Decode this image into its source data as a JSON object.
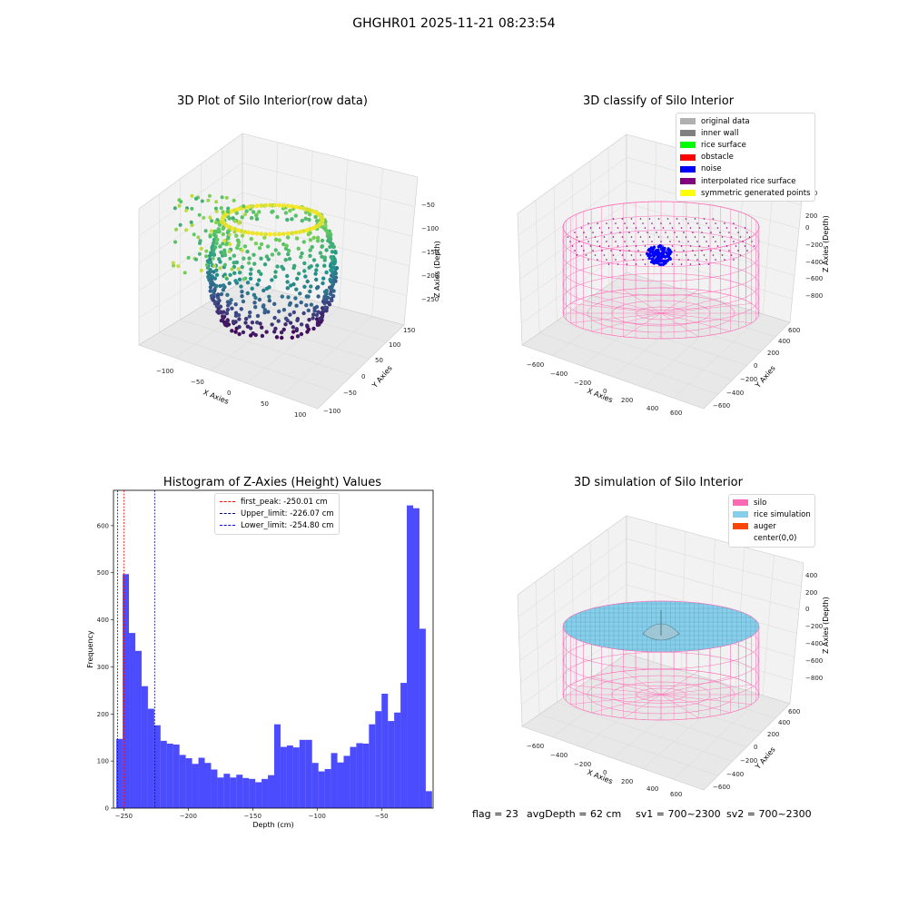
{
  "page_title": "GHGHR01 2025-11-21 08:23:54",
  "footer": {
    "flag": "flag = 23",
    "avg_depth": "avgDepth = 62 cm",
    "sv1": "sv1 = 700~2300",
    "sv2": "sv2 = 700~2300"
  },
  "chart_data": [
    {
      "type": "scatter",
      "title": "3D Plot of Silo Interior(row data)",
      "xlabel": "X Axies",
      "ylabel": "Y Axies",
      "zlabel": "Z Axies (Depth)",
      "x_ticks": [
        "−100",
        "−50",
        "0",
        "50",
        "100"
      ],
      "y_ticks": [
        "−100",
        "−50",
        "0",
        "50",
        "100",
        "150"
      ],
      "z_ticks": [
        "−50",
        "−100",
        "−150",
        "−200",
        "−250"
      ],
      "xlim": [
        -130,
        110
      ],
      "ylim": [
        -110,
        170
      ],
      "zlim": [
        -270,
        -30
      ],
      "colormap": "viridis"
    },
    {
      "type": "scatter",
      "title": "3D classify of Silo Interior",
      "xlabel": "X Axies",
      "ylabel": "Y Axies",
      "zlabel": "Z Axies (Depth)",
      "x_ticks": [
        "−600",
        "−400",
        "−200",
        "0",
        "200",
        "400",
        "600"
      ],
      "y_ticks": [
        "−600",
        "−400",
        "−200",
        "0",
        "200",
        "400",
        "600"
      ],
      "z_ticks": [
        "400",
        "200",
        "0",
        "−200",
        "−400",
        "−600",
        "−800"
      ],
      "legend": [
        {
          "label": "original data",
          "color": "#b0b0b0"
        },
        {
          "label": "inner wall",
          "color": "#808080"
        },
        {
          "label": "rice surface",
          "color": "#00ff00"
        },
        {
          "label": "obstacle",
          "color": "#ff0000"
        },
        {
          "label": "noise",
          "color": "#0000ff"
        },
        {
          "label": "interpolated rice surface",
          "color": "#800080"
        },
        {
          "label": "symmetric generated points",
          "color": "#ffff00"
        }
      ],
      "legend_position": "top-right"
    },
    {
      "type": "bar",
      "title": "Histogram of Z-Axies (Height) Values",
      "xlabel": "Depth (cm)",
      "ylabel": "Frequency",
      "xlim": [
        -258,
        -10
      ],
      "ylim": [
        0,
        675
      ],
      "x_ticks": [
        -250,
        -200,
        -150,
        -100,
        -50
      ],
      "y_ticks": [
        0,
        100,
        200,
        300,
        400,
        500,
        600
      ],
      "bar_color": "#0000ff",
      "bin_start": -255.8,
      "bin_width": 4.9,
      "values": [
        147,
        497,
        372,
        334,
        259,
        211,
        176,
        143,
        137,
        135,
        113,
        106,
        94,
        107,
        96,
        82,
        65,
        73,
        65,
        71,
        64,
        62,
        55,
        62,
        70,
        178,
        130,
        133,
        129,
        145,
        145,
        96,
        78,
        83,
        117,
        97,
        111,
        130,
        138,
        137,
        178,
        206,
        243,
        185,
        203,
        266,
        643,
        637,
        381,
        36
      ],
      "lines": [
        {
          "label": "first_peak: -250.01 cm",
          "x": -250.01,
          "color": "#ff0000"
        },
        {
          "label": "Upper_limit: -226.07 cm",
          "x": -226.07,
          "color": "#00008b"
        },
        {
          "label": "Lower_limit: -254.80 cm",
          "x": -254.8,
          "color": "#0000ff"
        }
      ],
      "legend_position": "top-center"
    },
    {
      "type": "area",
      "title": "3D simulation of Silo Interior",
      "xlabel": "X Axies",
      "ylabel": "Y Axies",
      "zlabel": "Z Axies (Depth)",
      "x_ticks": [
        "−600",
        "−400",
        "−200",
        "0",
        "200",
        "400",
        "600"
      ],
      "y_ticks": [
        "−600",
        "−400",
        "−200",
        "0",
        "200",
        "400",
        "600"
      ],
      "z_ticks": [
        "400",
        "200",
        "0",
        "−200",
        "−400",
        "−600",
        "−800"
      ],
      "legend": [
        {
          "label": "silo",
          "color": "#ff69b4"
        },
        {
          "label": "rice simulation",
          "color": "#87ceeb"
        },
        {
          "label": "auger",
          "color": "#ff4500"
        },
        {
          "label": "center(0,0)",
          "color": "#ffffff"
        }
      ],
      "legend_position": "top-right"
    }
  ]
}
